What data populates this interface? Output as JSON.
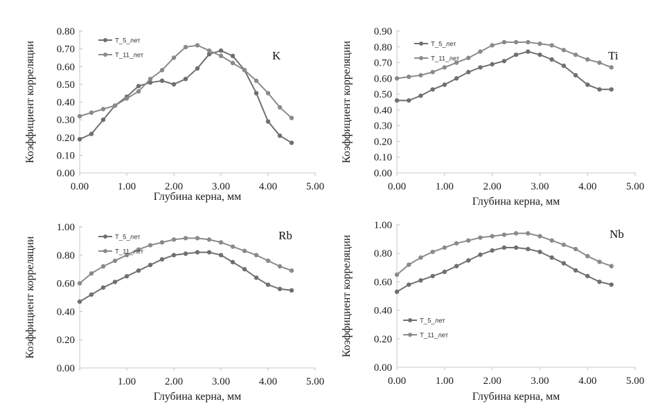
{
  "chart_data": [
    {
      "type": "line",
      "element_label": "K",
      "ylabel": "Коэффициент корреляции",
      "xlabel": "Глубина керна, мм",
      "xlim": [
        0,
        5
      ],
      "ylim": [
        0,
        0.8
      ],
      "xticks": [
        "0.00",
        "1.00",
        "2.00",
        "3.00",
        "4.00",
        "5.00"
      ],
      "yticks": [
        "0.00",
        "0.10",
        "0.20",
        "0.30",
        "0.40",
        "0.50",
        "0.60",
        "0.70",
        "0.80"
      ],
      "legend_position": "top-left",
      "series": [
        {
          "name": "T_5_лет",
          "color": "#6f6f6f",
          "x": [
            0,
            0.25,
            0.5,
            0.75,
            1.0,
            1.25,
            1.5,
            1.75,
            2.0,
            2.25,
            2.5,
            2.75,
            3.0,
            3.25,
            3.5,
            3.75,
            4.0,
            4.25,
            4.5
          ],
          "y": [
            0.19,
            0.22,
            0.3,
            0.38,
            0.43,
            0.49,
            0.51,
            0.52,
            0.5,
            0.53,
            0.59,
            0.67,
            0.69,
            0.66,
            0.58,
            0.45,
            0.29,
            0.21,
            0.17
          ]
        },
        {
          "name": "T_11_лет",
          "color": "#8a8a8a",
          "x": [
            0,
            0.25,
            0.5,
            0.75,
            1.0,
            1.25,
            1.5,
            1.75,
            2.0,
            2.25,
            2.5,
            2.75,
            3.0,
            3.25,
            3.5,
            3.75,
            4.0,
            4.25,
            4.5
          ],
          "y": [
            0.32,
            0.34,
            0.36,
            0.38,
            0.42,
            0.46,
            0.53,
            0.58,
            0.65,
            0.71,
            0.72,
            0.69,
            0.66,
            0.62,
            0.58,
            0.52,
            0.45,
            0.37,
            0.31
          ]
        }
      ]
    },
    {
      "type": "line",
      "element_label": "Ti",
      "ylabel": "Коэффициент корреляции",
      "xlabel": "Глубина керна, мм",
      "xlim": [
        0,
        5
      ],
      "ylim": [
        0,
        0.9
      ],
      "xticks": [
        "0.00",
        "1.00",
        "2.00",
        "3.00",
        "4.00",
        "5.00"
      ],
      "yticks": [
        "0.00",
        "0.10",
        "0.20",
        "0.30",
        "0.40",
        "0.50",
        "0.60",
        "0.70",
        "0.80",
        "0.90"
      ],
      "legend_position": "top-left",
      "series": [
        {
          "name": "T_5_лет",
          "color": "#6f6f6f",
          "x": [
            0,
            0.25,
            0.5,
            0.75,
            1.0,
            1.25,
            1.5,
            1.75,
            2.0,
            2.25,
            2.5,
            2.75,
            3.0,
            3.25,
            3.5,
            3.75,
            4.0,
            4.25,
            4.5
          ],
          "y": [
            0.46,
            0.46,
            0.49,
            0.53,
            0.56,
            0.6,
            0.64,
            0.67,
            0.69,
            0.71,
            0.75,
            0.77,
            0.75,
            0.72,
            0.68,
            0.62,
            0.56,
            0.53,
            0.53
          ]
        },
        {
          "name": "T_11_лет",
          "color": "#8a8a8a",
          "x": [
            0,
            0.25,
            0.5,
            0.75,
            1.0,
            1.25,
            1.5,
            1.75,
            2.0,
            2.25,
            2.5,
            2.75,
            3.0,
            3.25,
            3.5,
            3.75,
            4.0,
            4.25,
            4.5
          ],
          "y": [
            0.6,
            0.61,
            0.62,
            0.64,
            0.67,
            0.7,
            0.73,
            0.77,
            0.81,
            0.83,
            0.83,
            0.83,
            0.82,
            0.81,
            0.78,
            0.75,
            0.72,
            0.7,
            0.67
          ]
        }
      ]
    },
    {
      "type": "line",
      "element_label": "Rb",
      "ylabel": "Коэффициент корреляции",
      "xlabel": "Глубина керна, мм",
      "xlim": [
        0,
        5
      ],
      "ylim": [
        0,
        1.0
      ],
      "xticks": [
        "",
        "1.00",
        "2.00",
        "3.00",
        "4.00",
        "5.00"
      ],
      "yticks": [
        "0.00",
        "0.20",
        "0.40",
        "0.60",
        "0.80",
        "1.00"
      ],
      "legend_position": "top-left",
      "series": [
        {
          "name": "T_5_лет",
          "color": "#6f6f6f",
          "x": [
            0,
            0.25,
            0.5,
            0.75,
            1.0,
            1.25,
            1.5,
            1.75,
            2.0,
            2.25,
            2.5,
            2.75,
            3.0,
            3.25,
            3.5,
            3.75,
            4.0,
            4.25,
            4.5
          ],
          "y": [
            0.47,
            0.52,
            0.57,
            0.61,
            0.65,
            0.69,
            0.73,
            0.77,
            0.8,
            0.81,
            0.82,
            0.82,
            0.8,
            0.75,
            0.7,
            0.64,
            0.59,
            0.56,
            0.55
          ]
        },
        {
          "name": "T_11_лет",
          "color": "#8a8a8a",
          "x": [
            0,
            0.25,
            0.5,
            0.75,
            1.0,
            1.25,
            1.5,
            1.75,
            2.0,
            2.25,
            2.5,
            2.75,
            3.0,
            3.25,
            3.5,
            3.75,
            4.0,
            4.25,
            4.5
          ],
          "y": [
            0.6,
            0.67,
            0.72,
            0.76,
            0.8,
            0.84,
            0.87,
            0.89,
            0.91,
            0.92,
            0.92,
            0.91,
            0.89,
            0.86,
            0.83,
            0.8,
            0.76,
            0.72,
            0.69
          ]
        }
      ]
    },
    {
      "type": "line",
      "element_label": "Nb",
      "ylabel": "Коэффициент корреляции",
      "xlabel": "Глубина керна, мм",
      "xlim": [
        0,
        5
      ],
      "ylim": [
        0,
        1.0
      ],
      "xticks": [
        "0.00",
        "1.00",
        "2.00",
        "3.00",
        "4.00",
        "5.00"
      ],
      "yticks": [
        "0.00",
        "0.20",
        "0.40",
        "0.60",
        "0.80",
        "1.00"
      ],
      "legend_position": "bottom-left",
      "series": [
        {
          "name": "T_5_лет",
          "color": "#6f6f6f",
          "x": [
            0,
            0.25,
            0.5,
            0.75,
            1.0,
            1.25,
            1.5,
            1.75,
            2.0,
            2.25,
            2.5,
            2.75,
            3.0,
            3.25,
            3.5,
            3.75,
            4.0,
            4.25,
            4.5
          ],
          "y": [
            0.53,
            0.58,
            0.61,
            0.64,
            0.67,
            0.71,
            0.75,
            0.79,
            0.82,
            0.84,
            0.84,
            0.83,
            0.81,
            0.77,
            0.73,
            0.68,
            0.64,
            0.6,
            0.58
          ]
        },
        {
          "name": "T_11_лет",
          "color": "#8a8a8a",
          "x": [
            0,
            0.25,
            0.5,
            0.75,
            1.0,
            1.25,
            1.5,
            1.75,
            2.0,
            2.25,
            2.5,
            2.75,
            3.0,
            3.25,
            3.5,
            3.75,
            4.0,
            4.25,
            4.5
          ],
          "y": [
            0.65,
            0.72,
            0.77,
            0.81,
            0.84,
            0.87,
            0.89,
            0.91,
            0.92,
            0.93,
            0.94,
            0.94,
            0.92,
            0.89,
            0.86,
            0.83,
            0.78,
            0.74,
            0.71
          ]
        }
      ]
    }
  ]
}
